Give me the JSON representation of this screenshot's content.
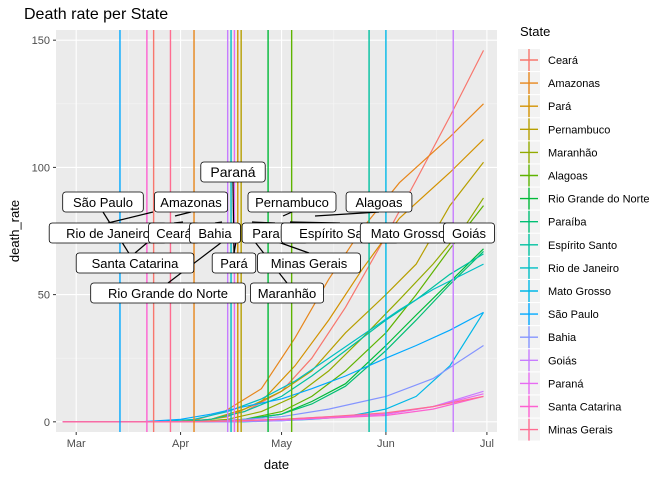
{
  "chart_data": {
    "type": "line",
    "title": "Death rate per State",
    "xlabel": "date",
    "ylabel": "death_rate",
    "x_ticks": [
      "Mar",
      "Apr",
      "May",
      "Jun",
      "Jul"
    ],
    "x_tick_dates": [
      "2020-03-01",
      "2020-04-01",
      "2020-05-01",
      "2020-06-01",
      "2020-07-01"
    ],
    "xlim": [
      "2020-02-24",
      "2020-07-04"
    ],
    "y_ticks": [
      0,
      50,
      100,
      150
    ],
    "ylim": [
      -4,
      154
    ],
    "grid": true,
    "legend_title": "State",
    "legend_position": "right",
    "series": [
      {
        "name": "Ceará",
        "color": "#F8766D",
        "points": [
          [
            "2020-02-26",
            0
          ],
          [
            "2020-03-31",
            0
          ],
          [
            "2020-04-10",
            1
          ],
          [
            "2020-04-20",
            4
          ],
          [
            "2020-05-01",
            12
          ],
          [
            "2020-05-10",
            25
          ],
          [
            "2020-05-20",
            45
          ],
          [
            "2020-06-01",
            73
          ],
          [
            "2020-06-10",
            95
          ],
          [
            "2020-06-20",
            120
          ],
          [
            "2020-06-30",
            146
          ]
        ]
      },
      {
        "name": "Amazonas",
        "color": "#E7861B",
        "points": [
          [
            "2020-02-26",
            0
          ],
          [
            "2020-03-31",
            0
          ],
          [
            "2020-04-06",
            1
          ],
          [
            "2020-04-14",
            4
          ],
          [
            "2020-04-25",
            13
          ],
          [
            "2020-05-05",
            33
          ],
          [
            "2020-05-15",
            56
          ],
          [
            "2020-05-25",
            76
          ],
          [
            "2020-06-05",
            94
          ],
          [
            "2020-06-20",
            112
          ],
          [
            "2020-06-30",
            125
          ]
        ]
      },
      {
        "name": "Pará",
        "color": "#D39200",
        "points": [
          [
            "2020-02-26",
            0
          ],
          [
            "2020-04-05",
            0
          ],
          [
            "2020-04-15",
            2
          ],
          [
            "2020-04-25",
            8
          ],
          [
            "2020-05-05",
            22
          ],
          [
            "2020-05-15",
            40
          ],
          [
            "2020-05-25",
            60
          ],
          [
            "2020-06-05",
            80
          ],
          [
            "2020-06-20",
            98
          ],
          [
            "2020-06-30",
            111
          ]
        ]
      },
      {
        "name": "Pernambuco",
        "color": "#B79F00",
        "points": [
          [
            "2020-02-26",
            0
          ],
          [
            "2020-04-01",
            0
          ],
          [
            "2020-04-10",
            1
          ],
          [
            "2020-04-20",
            5
          ],
          [
            "2020-05-01",
            12
          ],
          [
            "2020-05-10",
            20
          ],
          [
            "2020-05-20",
            35
          ],
          [
            "2020-06-01",
            50
          ],
          [
            "2020-06-10",
            62
          ],
          [
            "2020-06-20",
            85
          ],
          [
            "2020-06-30",
            102
          ]
        ]
      },
      {
        "name": "Maranhão",
        "color": "#93AA00",
        "points": [
          [
            "2020-02-26",
            0
          ],
          [
            "2020-04-05",
            0
          ],
          [
            "2020-04-15",
            1
          ],
          [
            "2020-04-25",
            4
          ],
          [
            "2020-05-05",
            10
          ],
          [
            "2020-05-15",
            20
          ],
          [
            "2020-05-25",
            33
          ],
          [
            "2020-06-05",
            48
          ],
          [
            "2020-06-15",
            62
          ],
          [
            "2020-06-25",
            78
          ],
          [
            "2020-06-30",
            88
          ]
        ]
      },
      {
        "name": "Alagoas",
        "color": "#5EB300",
        "points": [
          [
            "2020-02-26",
            0
          ],
          [
            "2020-04-10",
            0
          ],
          [
            "2020-04-20",
            1
          ],
          [
            "2020-05-01",
            4
          ],
          [
            "2020-05-10",
            10
          ],
          [
            "2020-05-20",
            20
          ],
          [
            "2020-06-01",
            35
          ],
          [
            "2020-06-10",
            50
          ],
          [
            "2020-06-20",
            68
          ],
          [
            "2020-06-30",
            85
          ]
        ]
      },
      {
        "name": "Rio Grande do Norte",
        "color": "#00BA38",
        "points": [
          [
            "2020-02-26",
            0
          ],
          [
            "2020-04-10",
            0
          ],
          [
            "2020-04-20",
            1
          ],
          [
            "2020-05-01",
            3
          ],
          [
            "2020-05-10",
            8
          ],
          [
            "2020-05-20",
            15
          ],
          [
            "2020-06-01",
            30
          ],
          [
            "2020-06-10",
            42
          ],
          [
            "2020-06-20",
            55
          ],
          [
            "2020-06-30",
            68
          ]
        ]
      },
      {
        "name": "Paraíba",
        "color": "#00BF74",
        "points": [
          [
            "2020-02-26",
            0
          ],
          [
            "2020-04-10",
            0
          ],
          [
            "2020-04-20",
            1
          ],
          [
            "2020-05-01",
            3
          ],
          [
            "2020-05-10",
            7
          ],
          [
            "2020-05-20",
            14
          ],
          [
            "2020-06-01",
            28
          ],
          [
            "2020-06-10",
            40
          ],
          [
            "2020-06-20",
            54
          ],
          [
            "2020-06-30",
            67
          ]
        ]
      },
      {
        "name": "Espírito Santo",
        "color": "#00C19F",
        "points": [
          [
            "2020-02-26",
            0
          ],
          [
            "2020-04-01",
            0
          ],
          [
            "2020-04-10",
            1
          ],
          [
            "2020-04-20",
            4
          ],
          [
            "2020-05-01",
            10
          ],
          [
            "2020-05-10",
            18
          ],
          [
            "2020-05-20",
            28
          ],
          [
            "2020-06-01",
            40
          ],
          [
            "2020-06-10",
            48
          ],
          [
            "2020-06-20",
            58
          ],
          [
            "2020-06-30",
            66
          ]
        ]
      },
      {
        "name": "Rio de Janeiro",
        "color": "#00BFC4",
        "points": [
          [
            "2020-02-26",
            0
          ],
          [
            "2020-03-25",
            0
          ],
          [
            "2020-04-05",
            1
          ],
          [
            "2020-04-15",
            4
          ],
          [
            "2020-04-25",
            9
          ],
          [
            "2020-05-05",
            16
          ],
          [
            "2020-05-15",
            25
          ],
          [
            "2020-05-25",
            34
          ],
          [
            "2020-06-05",
            44
          ],
          [
            "2020-06-15",
            52
          ],
          [
            "2020-06-30",
            62
          ]
        ]
      },
      {
        "name": "Mato Grosso",
        "color": "#00B8E7",
        "points": [
          [
            "2020-02-26",
            0
          ],
          [
            "2020-04-20",
            0
          ],
          [
            "2020-05-01",
            0.5
          ],
          [
            "2020-05-10",
            1
          ],
          [
            "2020-05-20",
            2
          ],
          [
            "2020-06-01",
            5
          ],
          [
            "2020-06-10",
            10
          ],
          [
            "2020-06-20",
            22
          ],
          [
            "2020-06-30",
            43
          ]
        ]
      },
      {
        "name": "São Paulo",
        "color": "#00A9FF",
        "points": [
          [
            "2020-02-26",
            0
          ],
          [
            "2020-03-20",
            0
          ],
          [
            "2020-04-01",
            1
          ],
          [
            "2020-04-10",
            3
          ],
          [
            "2020-04-20",
            6
          ],
          [
            "2020-05-01",
            9
          ],
          [
            "2020-05-10",
            13
          ],
          [
            "2020-05-20",
            18
          ],
          [
            "2020-06-01",
            25
          ],
          [
            "2020-06-10",
            30
          ],
          [
            "2020-06-20",
            36
          ],
          [
            "2020-06-30",
            43
          ]
        ]
      },
      {
        "name": "Bahia",
        "color": "#8494FF",
        "points": [
          [
            "2020-02-26",
            0
          ],
          [
            "2020-04-05",
            0
          ],
          [
            "2020-04-15",
            0.5
          ],
          [
            "2020-05-01",
            2
          ],
          [
            "2020-05-15",
            5
          ],
          [
            "2020-06-01",
            10
          ],
          [
            "2020-06-15",
            17
          ],
          [
            "2020-06-30",
            30
          ]
        ]
      },
      {
        "name": "Goiás",
        "color": "#C77CFF",
        "points": [
          [
            "2020-02-26",
            0
          ],
          [
            "2020-04-15",
            0
          ],
          [
            "2020-05-01",
            0.5
          ],
          [
            "2020-05-15",
            1.5
          ],
          [
            "2020-06-01",
            3
          ],
          [
            "2020-06-15",
            6
          ],
          [
            "2020-06-30",
            12
          ]
        ]
      },
      {
        "name": "Paraná",
        "color": "#E76BF3",
        "points": [
          [
            "2020-02-26",
            0
          ],
          [
            "2020-04-01",
            0
          ],
          [
            "2020-04-15",
            0.3
          ],
          [
            "2020-05-01",
            1
          ],
          [
            "2020-05-15",
            2
          ],
          [
            "2020-06-01",
            3
          ],
          [
            "2020-06-15",
            6
          ],
          [
            "2020-06-30",
            11
          ]
        ]
      },
      {
        "name": "Santa Catarina",
        "color": "#FD61D1",
        "points": [
          [
            "2020-02-26",
            0
          ],
          [
            "2020-04-01",
            0
          ],
          [
            "2020-04-15",
            0.4
          ],
          [
            "2020-05-01",
            1
          ],
          [
            "2020-05-15",
            1.5
          ],
          [
            "2020-06-01",
            2.5
          ],
          [
            "2020-06-15",
            5
          ],
          [
            "2020-06-30",
            10
          ]
        ]
      },
      {
        "name": "Minas Gerais",
        "color": "#FF6C91",
        "points": [
          [
            "2020-02-26",
            0
          ],
          [
            "2020-04-05",
            0
          ],
          [
            "2020-04-20",
            0.5
          ],
          [
            "2020-05-01",
            1
          ],
          [
            "2020-05-15",
            2
          ],
          [
            "2020-06-01",
            3.5
          ],
          [
            "2020-06-15",
            6
          ],
          [
            "2020-06-30",
            10
          ]
        ]
      }
    ],
    "vlines": [
      {
        "date": "2020-03-14",
        "color": "#00A9FF"
      },
      {
        "date": "2020-03-22",
        "color": "#FD61D1"
      },
      {
        "date": "2020-03-24",
        "color": "#F8766D"
      },
      {
        "date": "2020-03-29",
        "color": "#FF6C91"
      },
      {
        "date": "2020-04-05",
        "color": "#E7861B"
      },
      {
        "date": "2020-04-15",
        "color": "#C77CFF"
      },
      {
        "date": "2020-04-16",
        "color": "#00BFC4"
      },
      {
        "date": "2020-04-17",
        "color": "#E76BF3"
      },
      {
        "date": "2020-04-18",
        "color": "#D39200"
      },
      {
        "date": "2020-04-19",
        "color": "#B79F00"
      },
      {
        "date": "2020-04-27",
        "color": "#00BA38"
      },
      {
        "date": "2020-05-04",
        "color": "#5EB300"
      },
      {
        "date": "2020-05-27",
        "color": "#00C19F"
      },
      {
        "date": "2020-06-01",
        "color": "#00B8E7"
      },
      {
        "date": "2020-06-21",
        "color": "#C77CFF"
      }
    ],
    "annotations": [
      {
        "label": "Paraná"
      },
      {
        "label": "São Paulo"
      },
      {
        "label": "Amazonas"
      },
      {
        "label": "Pernambuco"
      },
      {
        "label": "Alagoas"
      },
      {
        "label": "Rio de Janeiro"
      },
      {
        "label": "Ceará"
      },
      {
        "label": "Bahia"
      },
      {
        "label": "Paraíba"
      },
      {
        "label": "Espírito Santo"
      },
      {
        "label": "Mato Grosso"
      },
      {
        "label": "Goiás"
      },
      {
        "label": "Santa Catarina"
      },
      {
        "label": "Pará"
      },
      {
        "label": "Minas Gerais"
      },
      {
        "label": "Rio Grande do Norte"
      },
      {
        "label": "Maranhão"
      }
    ]
  }
}
